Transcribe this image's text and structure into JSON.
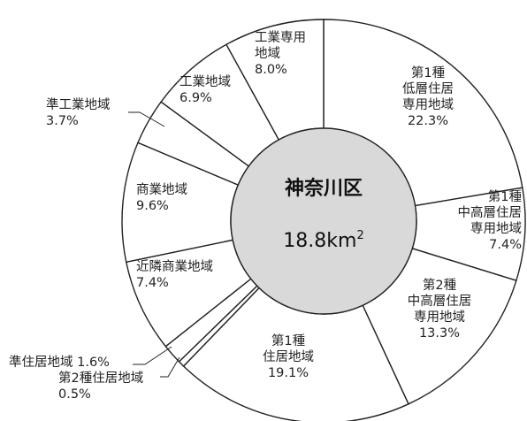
{
  "chart_data": {
    "type": "donut",
    "center": {
      "title": "神奈川区",
      "area_value": "18.8km",
      "area_unit_superscript": "2"
    },
    "segments": [
      {
        "label": [
          "第1種",
          "低層住居",
          "専用地域"
        ],
        "value_text": "22.3%",
        "value": 22.3
      },
      {
        "label": [
          "第1種",
          "中高層住居",
          "専用地域"
        ],
        "value_text": "7.4%",
        "value": 7.4
      },
      {
        "label": [
          "第2種",
          "中高層住居",
          "専用地域"
        ],
        "value_text": "13.3%",
        "value": 13.3
      },
      {
        "label": [
          "第1種",
          "住居地域"
        ],
        "value_text": "19.1%",
        "value": 19.1
      },
      {
        "label": [
          "第2種住居地域"
        ],
        "value_text": "0.5%",
        "value": 0.5
      },
      {
        "label": [
          "準住居地域"
        ],
        "value_text": "1.6%",
        "value": 1.6
      },
      {
        "label": [
          "近隣商業地域"
        ],
        "value_text": "7.4%",
        "value": 7.4
      },
      {
        "label": [
          "商業地域"
        ],
        "value_text": "9.6%",
        "value": 9.6
      },
      {
        "label": [
          "準工業地域"
        ],
        "value_text": "3.7%",
        "value": 3.7
      },
      {
        "label": [
          "工業地域"
        ],
        "value_text": "6.9%",
        "value": 6.9
      },
      {
        "label": [
          "工業専用",
          "地域"
        ],
        "value_text": "8.0%",
        "value": 8.0
      }
    ],
    "colors": {
      "ring_fill": "#ffffff",
      "stroke": "#222222",
      "center_fill": "#d9d9d9"
    }
  }
}
